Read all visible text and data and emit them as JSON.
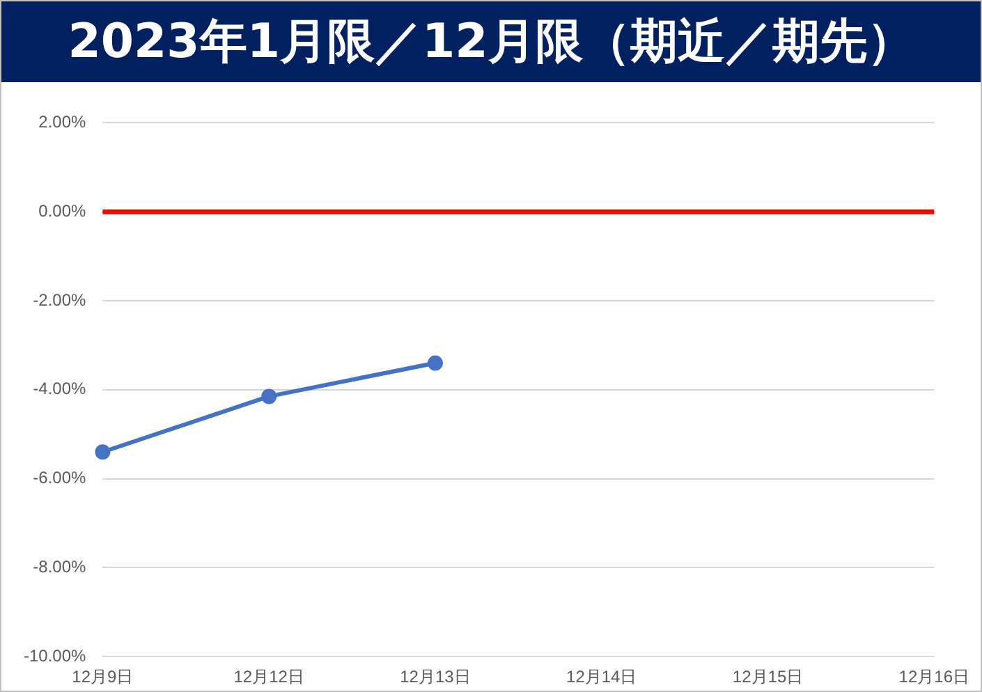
{
  "chart_data": {
    "type": "line",
    "title": "2023年1月限／12月限（期近／期先）",
    "categories": [
      "12月9日",
      "12月12日",
      "12月13日",
      "12月14日",
      "12月15日",
      "12月16日"
    ],
    "series": [
      {
        "color": "#4472c4",
        "values": [
          -5.4,
          -4.15,
          -3.4,
          null,
          null,
          null
        ]
      }
    ],
    "ylim": [
      -10,
      2
    ],
    "yticks": [
      {
        "value": -10,
        "label": "-10.00%"
      },
      {
        "value": -8,
        "label": "-8.00%"
      },
      {
        "value": -6,
        "label": "-6.00%"
      },
      {
        "value": -4,
        "label": "-4.00%"
      },
      {
        "value": -2,
        "label": "-2.00%"
      },
      {
        "value": 0,
        "label": "0.00%"
      },
      {
        "value": 2,
        "label": "2.00%"
      }
    ],
    "ref_lines": [
      {
        "axis": "y",
        "value": 0,
        "color": "#ff0000"
      }
    ],
    "grid": "y",
    "marker": "circle",
    "legend": false
  }
}
